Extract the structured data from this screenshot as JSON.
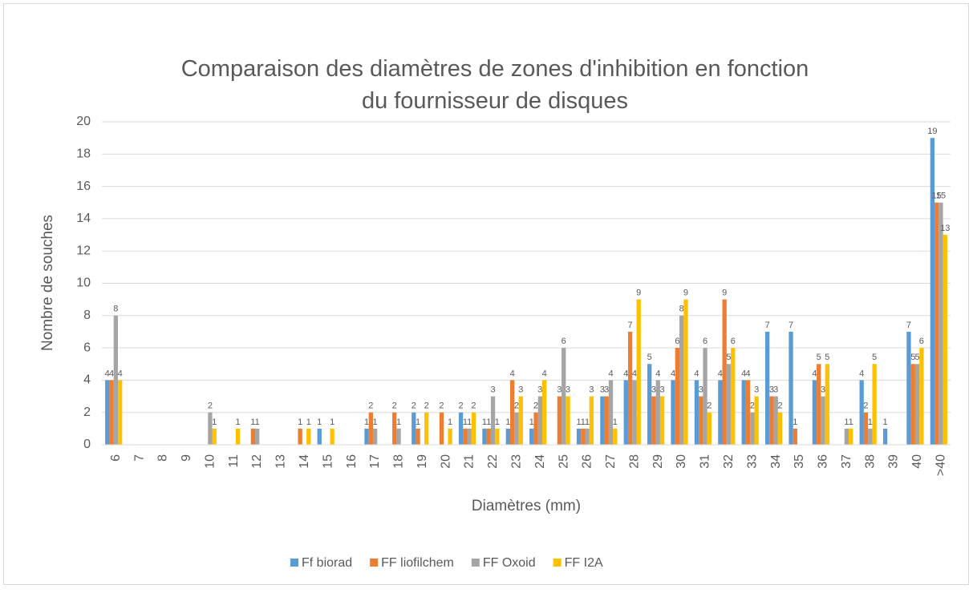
{
  "chart_data": {
    "type": "bar",
    "title": "Comparaison des diamètres de zones d'inhibition en fonction du fournisseur de disques",
    "x_label": "Diamètres (mm)",
    "y_label": "Nombre de souches",
    "categories": [
      "6",
      "7",
      "8",
      "9",
      "10",
      "11",
      "12",
      "13",
      "14",
      "15",
      "16",
      "17",
      "18",
      "19",
      "20",
      "21",
      "22",
      "23",
      "24",
      "25",
      "26",
      "27",
      "28",
      "29",
      "30",
      "31",
      "32",
      "33",
      "34",
      "35",
      "36",
      "37",
      "38",
      "39",
      "40",
      ">40"
    ],
    "series": [
      {
        "name": "Ff biorad",
        "color": "#5b9bd5",
        "values": [
          4,
          0,
          0,
          0,
          0,
          0,
          0,
          0,
          0,
          1,
          0,
          1,
          0,
          2,
          0,
          2,
          1,
          1,
          1,
          0,
          1,
          3,
          4,
          5,
          4,
          4,
          4,
          4,
          7,
          7,
          4,
          0,
          4,
          1,
          7,
          19
        ]
      },
      {
        "name": "FF liofilchem",
        "color": "#ed7d31",
        "values": [
          4,
          0,
          0,
          0,
          0,
          0,
          1,
          0,
          1,
          0,
          0,
          2,
          2,
          1,
          2,
          1,
          1,
          4,
          2,
          3,
          1,
          3,
          7,
          3,
          6,
          3,
          9,
          4,
          3,
          1,
          5,
          0,
          2,
          0,
          5,
          15
        ]
      },
      {
        "name": "FF Oxoid",
        "color": "#a5a5a5",
        "values": [
          8,
          0,
          0,
          0,
          2,
          0,
          1,
          0,
          0,
          0,
          0,
          1,
          1,
          0,
          0,
          1,
          3,
          2,
          3,
          6,
          1,
          4,
          4,
          4,
          8,
          6,
          5,
          2,
          3,
          0,
          3,
          1,
          1,
          0,
          5,
          15
        ]
      },
      {
        "name": "FF I2A",
        "color": "#ffc000",
        "values": [
          4,
          0,
          0,
          0,
          1,
          1,
          0,
          0,
          1,
          1,
          0,
          0,
          0,
          2,
          1,
          2,
          1,
          3,
          4,
          3,
          3,
          1,
          9,
          3,
          9,
          2,
          6,
          3,
          2,
          0,
          5,
          1,
          5,
          0,
          6,
          13
        ]
      }
    ],
    "ylim": [
      0,
      20
    ],
    "yticks": [
      0,
      2,
      4,
      6,
      8,
      10,
      12,
      14,
      16,
      18,
      20
    ],
    "grid": true,
    "legend": "bottom"
  }
}
